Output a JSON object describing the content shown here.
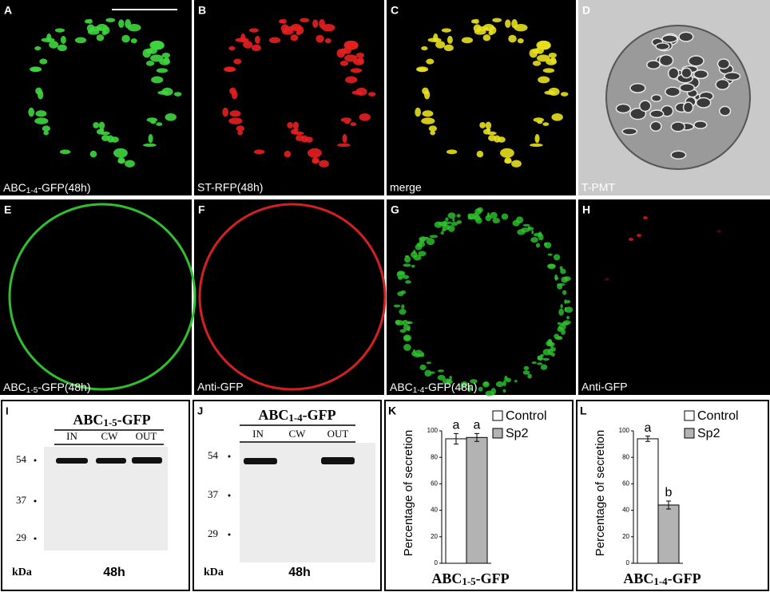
{
  "panels": [
    {
      "letter": "A",
      "caption": {
        "main": "ABC",
        "sub": "1-4",
        "rest": "-GFP(48h)"
      }
    },
    {
      "letter": "B",
      "caption": "ST-RFP(48h)"
    },
    {
      "letter": "C",
      "caption": "merge"
    },
    {
      "letter": "D",
      "caption": "T-PMT"
    },
    {
      "letter": "E",
      "caption": {
        "main": "ABC",
        "sub": "1-5",
        "rest": "-GFP(48h)"
      }
    },
    {
      "letter": "F",
      "caption": "Anti-GFP"
    },
    {
      "letter": "G",
      "caption": {
        "main": "ABC",
        "sub": "1-4",
        "rest": "-GFP(48h)"
      }
    },
    {
      "letter": "H",
      "caption": "Anti-GFP"
    }
  ],
  "blots": [
    {
      "letter": "I",
      "title": {
        "main": "ABC",
        "sub": "1-5",
        "rest": "-GFP"
      },
      "lanes": [
        "IN",
        "CW",
        "OUT"
      ],
      "markers": [
        54,
        37,
        29
      ],
      "unit": "kDa",
      "time": "48h"
    },
    {
      "letter": "J",
      "title": {
        "main": "ABC",
        "sub": "1-4",
        "rest": "-GFP"
      },
      "lanes": [
        "IN",
        "CW",
        "OUT"
      ],
      "markers": [
        54,
        37,
        29
      ],
      "unit": "kDa",
      "time": "48h"
    }
  ],
  "chart_data": [
    {
      "type": "bar",
      "panel_label": "K",
      "ylabel": "Percentage of secretion",
      "xlabel": {
        "main": "ABC",
        "sub": "1-5",
        "rest": "-GFP"
      },
      "ylim": [
        0,
        100
      ],
      "yticks": [
        0,
        20,
        40,
        60,
        80,
        100
      ],
      "series": [
        {
          "name": "Control",
          "color": "#ffffff",
          "values": [
            94
          ],
          "errors": [
            4
          ],
          "letters": [
            "a"
          ]
        },
        {
          "name": "Sp2",
          "color": "#b3b3b3",
          "values": [
            95
          ],
          "errors": [
            3
          ],
          "letters": [
            "a"
          ]
        }
      ]
    },
    {
      "type": "bar",
      "panel_label": "L",
      "ylabel": "Percentage of secretion",
      "xlabel": {
        "main": "ABC",
        "sub": "1-4",
        "rest": "-GFP"
      },
      "ylim": [
        0,
        100
      ],
      "yticks": [
        0,
        20,
        40,
        60,
        80,
        100
      ],
      "series": [
        {
          "name": "Control",
          "color": "#ffffff",
          "values": [
            94
          ],
          "errors": [
            2
          ],
          "letters": [
            "a"
          ]
        },
        {
          "name": "Sp2",
          "color": "#b3b3b3",
          "values": [
            44
          ],
          "errors": [
            3
          ],
          "letters": [
            "b"
          ]
        }
      ]
    }
  ]
}
